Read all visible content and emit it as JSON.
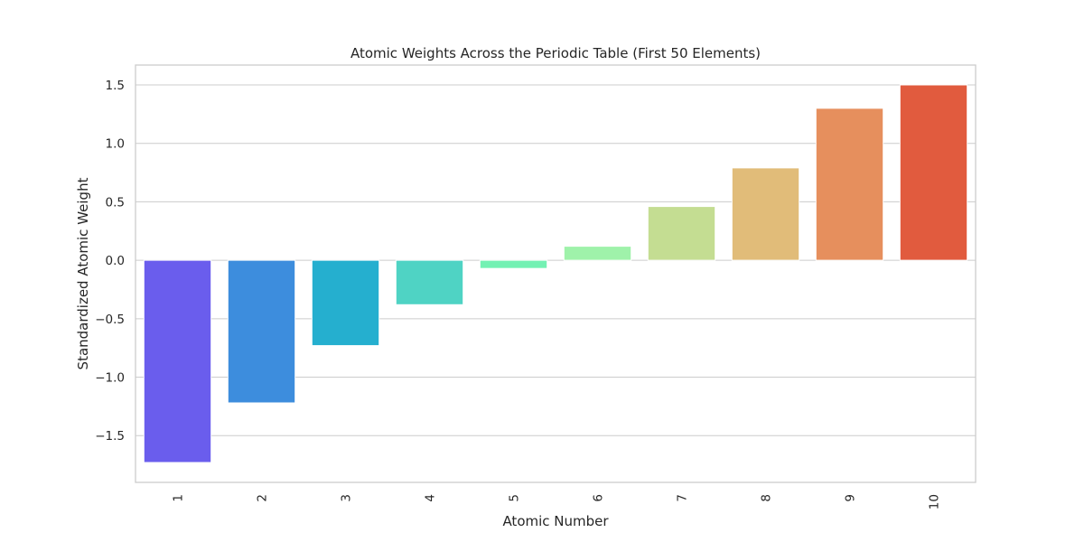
{
  "chart_data": {
    "type": "bar",
    "title": "Atomic Weights Across the Periodic Table (First 50 Elements)",
    "xlabel": "Atomic Number",
    "ylabel": "Standardized Atomic Weight",
    "categories": [
      "1",
      "2",
      "3",
      "4",
      "5",
      "6",
      "7",
      "8",
      "9",
      "10"
    ],
    "values": [
      -1.73,
      -1.22,
      -0.73,
      -0.38,
      -0.07,
      0.12,
      0.46,
      0.79,
      1.3,
      1.5
    ],
    "colors": [
      "#6a5ded",
      "#3d8ddd",
      "#25afcf",
      "#4fd3c4",
      "#73f1b3",
      "#9ff2aa",
      "#c4dd92",
      "#e1bc79",
      "#e68f5d",
      "#e15b3e"
    ],
    "ylim": [
      -1.9,
      1.67
    ],
    "yticks": [
      -1.5,
      -1.0,
      -0.5,
      0.0,
      0.5,
      1.0,
      1.5
    ],
    "ytick_labels": [
      "−1.5",
      "−1.0",
      "−0.5",
      "0.0",
      "0.5",
      "1.0",
      "1.5"
    ],
    "grid": "horizontal",
    "xtick_rotation": "vertical"
  }
}
